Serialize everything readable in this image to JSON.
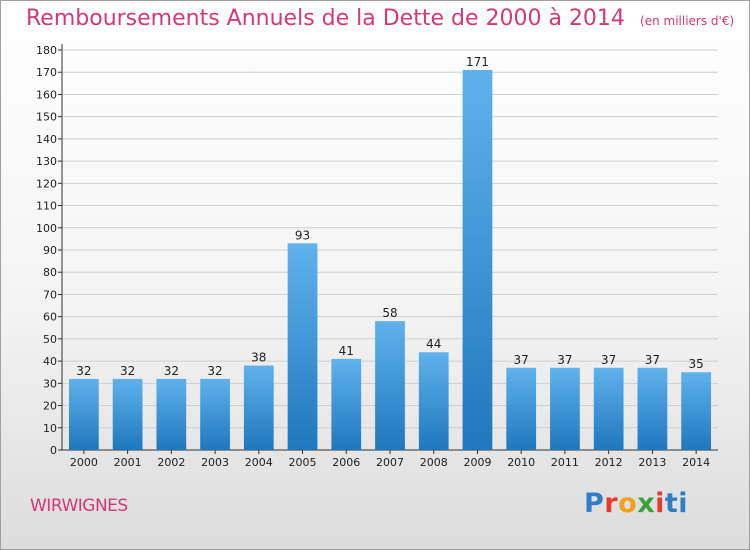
{
  "header": {
    "title": "Remboursements Annuels de la Dette de 2000 à 2014",
    "unit": "(en milliers d'€)"
  },
  "footer": {
    "commune": "WIRWIGNES",
    "logo_text": "Proxiti"
  },
  "colors": {
    "title": "#d3397a",
    "bar_light": "#5fb2ec",
    "bar_dark": "#1f77bd",
    "grid": "#d0d0d0",
    "axis": "#333333"
  },
  "chart_data": {
    "type": "bar",
    "title": "Remboursements Annuels de la Dette de 2000 à 2014",
    "subtitle": "(en milliers d'€)",
    "categories": [
      "2000",
      "2001",
      "2002",
      "2003",
      "2004",
      "2005",
      "2006",
      "2007",
      "2008",
      "2009",
      "2010",
      "2011",
      "2012",
      "2013",
      "2014"
    ],
    "values": [
      32,
      32,
      32,
      32,
      38,
      93,
      41,
      58,
      44,
      171,
      37,
      37,
      37,
      37,
      35
    ],
    "ylim": [
      0,
      180
    ],
    "ytick_step": 10,
    "grid": true,
    "legend": "none",
    "data_labels": true
  }
}
